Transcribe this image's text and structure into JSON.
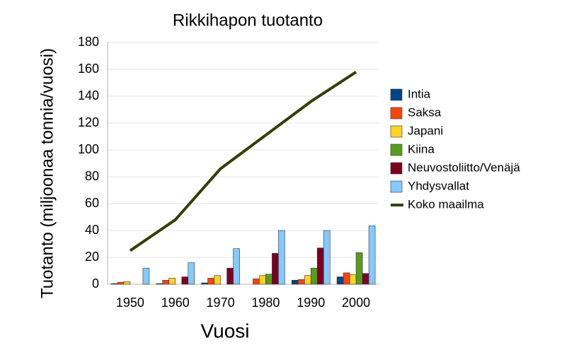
{
  "chart_data": {
    "type": "bar",
    "title": "Rikkihapon tuotanto",
    "x_label": "Vuosi",
    "y_label": "Tuotanto (miljoonaa tonnia/vuosi)",
    "categories": [
      "1950",
      "1960",
      "1970",
      "1980",
      "1990",
      "2000"
    ],
    "series": [
      {
        "name": "Intia",
        "color": "#004586",
        "values": [
          0.5,
          0.5,
          1,
          null,
          3,
          5.5
        ]
      },
      {
        "name": "Saksa",
        "color": "#ff420e",
        "values": [
          1.5,
          3,
          4.5,
          4,
          3.5,
          8.5
        ]
      },
      {
        "name": "Japani",
        "color": "#ffd320",
        "values": [
          2,
          4.5,
          6.5,
          6.5,
          6.5,
          7
        ]
      },
      {
        "name": "Kiina",
        "color": "#579d1c",
        "values": [
          null,
          null,
          null,
          7.5,
          12,
          23.5
        ]
      },
      {
        "name": "Neuvostoliitto/Venäjä",
        "color": "#7e0021",
        "values": [
          null,
          5.5,
          12,
          23,
          27,
          8
        ]
      },
      {
        "name": "Yhdysvallat",
        "color": "#83caff",
        "values": [
          12,
          16,
          26.5,
          40,
          40,
          43.5
        ]
      },
      {
        "name": "Koko maailma",
        "color": "#314004",
        "type": "line",
        "values": [
          25,
          48,
          86,
          111,
          136,
          158
        ]
      }
    ],
    "ylim": [
      0,
      180
    ],
    "yticks": [
      0,
      20,
      40,
      60,
      80,
      100,
      120,
      140,
      160,
      180
    ],
    "grid": true,
    "legend": "right"
  }
}
